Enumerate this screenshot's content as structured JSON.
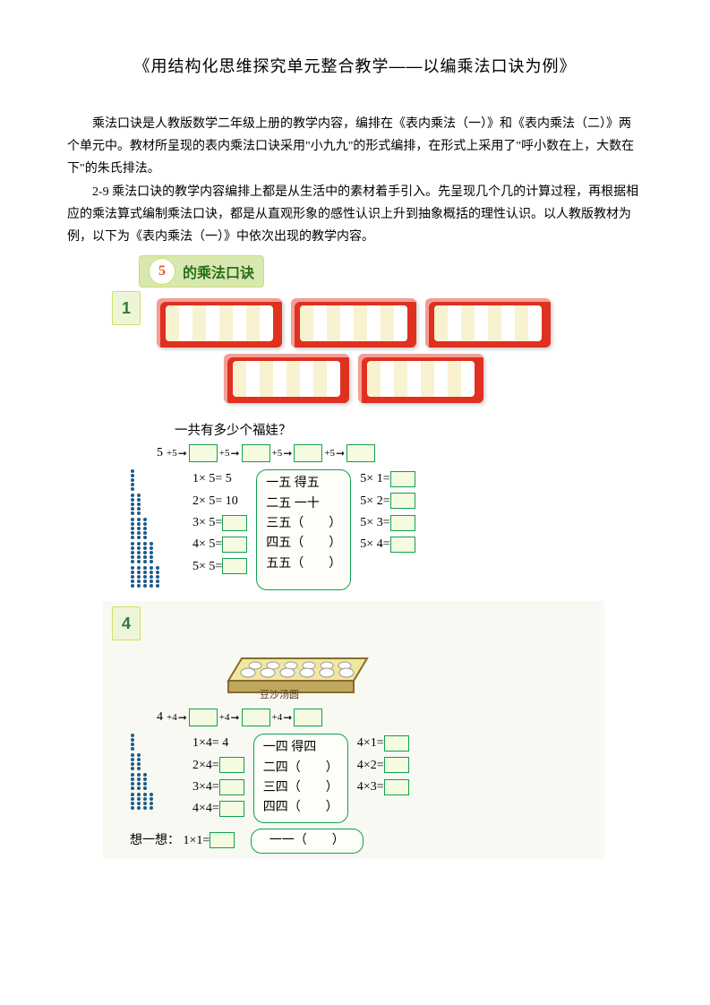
{
  "title": "《用结构化思维探究单元整合教学——以编乘法口诀为例》",
  "para1": "乘法口诀是人教版数学二年级上册的教学内容，编排在《表内乘法（一）》和《表内乘法（二）》两个单元中。教材所呈现的表内乘法口诀采用\"小九九\"的形式编排，在形式上采用了\"呼小数在上，大数在下\"的朱氏排法。",
  "para2": "2-9 乘法口诀的教学内容编排上都是从生活中的素材着手引入。先呈现几个几的计算过程，再根据相应的乘法算式编制乘法口诀，都是从直观形象的感性认识上升到抽象概括的理性认识。以人教版教材为例，以下为《表内乘法（一）》中依次出现的教学内容。",
  "section5": {
    "header_num": "5",
    "header_text": "的乘法口诀",
    "example_num": "1",
    "question": "一共有多少个福娃？",
    "chain_start": "5",
    "chain_ops": [
      "+5",
      "+5",
      "+5",
      "+5"
    ],
    "equations": [
      "1× 5=  5",
      "2× 5= 10",
      "3× 5=",
      "4× 5=",
      "5× 5="
    ],
    "eq_needs_box": [
      false,
      false,
      true,
      true,
      true
    ],
    "rhymes": [
      "一五 得五",
      "二五 一十",
      "三五（　　）",
      "四五（　　）",
      "五五（　　）"
    ],
    "reverse": [
      "5× 1=",
      "5× 2=",
      "5× 3=",
      "5× 4="
    ],
    "dot_rows": [
      1,
      2,
      3,
      4,
      5
    ],
    "dots_per_stack": 5
  },
  "section4": {
    "example_num": "4",
    "tray_label": "豆沙汤圆",
    "chain_start": "4",
    "chain_ops": [
      "+4",
      "+4",
      "+4"
    ],
    "equations": [
      "1×4=  4",
      "2×4=",
      "3×4=",
      "4×4="
    ],
    "eq_needs_box": [
      false,
      true,
      true,
      true
    ],
    "rhymes": [
      "一四 得四",
      "二四（　　）",
      "三四（　　）",
      "四四（　　）"
    ],
    "reverse": [
      "4×1=",
      "4×2=",
      "4×3="
    ],
    "dot_rows": [
      1,
      2,
      3,
      4
    ],
    "dots_per_stack": 4,
    "think_label": "想一想：",
    "think_eq": "1×1=",
    "think_rhyme": "一一（　　）"
  },
  "colors": {
    "green_border": "#10a050",
    "green_bg": "#f5fbe0",
    "red": "#e03020",
    "header_bg": "#d8e8b0"
  }
}
